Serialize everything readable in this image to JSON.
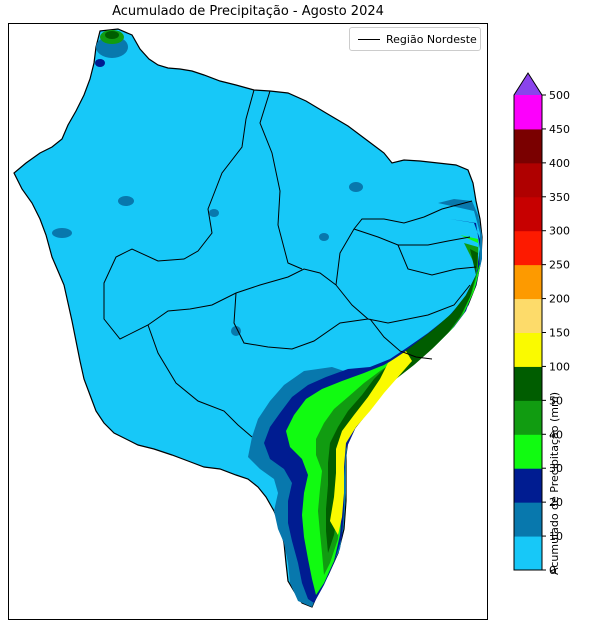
{
  "map": {
    "title": "Acumulado de Precipitação - Agosto 2024",
    "legend_label": "Região Nordeste",
    "legend_line_color": "#000000",
    "region_boundary_color": "#000000"
  },
  "colorbar": {
    "label": "Acumulado de Precipitação (mm)",
    "extend": "max",
    "ticks": [
      "0",
      "10",
      "20",
      "30",
      "40",
      "50",
      "100",
      "150",
      "200",
      "250",
      "300",
      "350",
      "400",
      "450",
      "500"
    ],
    "levels": [
      {
        "range": "0-10",
        "color": "#17C8F8"
      },
      {
        "range": "10-20",
        "color": "#0878AD"
      },
      {
        "range": "20-30",
        "color": "#001C91"
      },
      {
        "range": "30-40",
        "color": "#11FB11"
      },
      {
        "range": "40-50",
        "color": "#119C11"
      },
      {
        "range": "50-100",
        "color": "#005D00"
      },
      {
        "range": "100-150",
        "color": "#FAFA00"
      },
      {
        "range": "150-200",
        "color": "#FDDB6A"
      },
      {
        "range": "200-250",
        "color": "#FD9A00"
      },
      {
        "range": "250-300",
        "color": "#FD1A00"
      },
      {
        "range": "300-350",
        "color": "#C70000"
      },
      {
        "range": "350-400",
        "color": "#AF0000"
      },
      {
        "range": "400-450",
        "color": "#7A0000"
      },
      {
        "range": "450-500",
        "color": "#FC00FC"
      },
      {
        "range": "500+",
        "color": "#8A44EC"
      }
    ]
  }
}
